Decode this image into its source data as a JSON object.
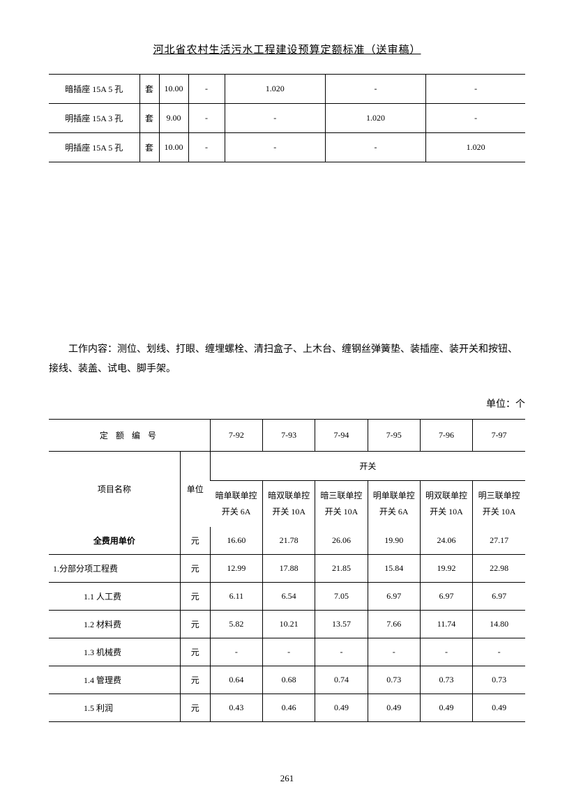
{
  "pageTitle": "河北省农村生活污水工程建设预算定额标准（送审稿）",
  "pageNumber": "261",
  "table1": {
    "rows": [
      {
        "name": "暗插座 15A 5 孔",
        "unit": "套",
        "v1": "10.00",
        "v2": "-",
        "v3": "1.020",
        "v4": "-",
        "v5": "-"
      },
      {
        "name": "明插座 15A 3 孔",
        "unit": "套",
        "v1": "9.00",
        "v2": "-",
        "v3": "-",
        "v4": "1.020",
        "v5": "-"
      },
      {
        "name": "明插座 15A 5 孔",
        "unit": "套",
        "v1": "10.00",
        "v2": "-",
        "v3": "-",
        "v4": "-",
        "v5": "1.020"
      }
    ]
  },
  "workContent": "工作内容：测位、划线、打眼、缠埋螺栓、清扫盒子、上木台、缠钢丝弹簧垫、装插座、装开关和按钮、接线、装盖、试电、脚手架。",
  "unitLabel": "单位：个",
  "table2": {
    "codeHeader": "定 额 编 号",
    "codes": [
      "7-92",
      "7-93",
      "7-94",
      "7-95",
      "7-96",
      "7-97"
    ],
    "nameHeader": "项目名称",
    "unitHeader": "单位",
    "groupHeader": "开关",
    "subHeaders": [
      "暗单联单控\n开关 6A",
      "暗双联单控\n开关 10A",
      "暗三联单控\n开关 10A",
      "明单联单控\n开关 6A",
      "明双联单控\n开关 10A",
      "明三联单控\n开关 10A"
    ],
    "rows": [
      {
        "name": "全费用单价",
        "unit": "元",
        "vals": [
          "16.60",
          "21.78",
          "26.06",
          "19.90",
          "24.06",
          "27.17"
        ],
        "bold": true
      },
      {
        "name": "1.分部分项工程费",
        "unit": "元",
        "vals": [
          "12.99",
          "17.88",
          "21.85",
          "15.84",
          "19.92",
          "22.98"
        ],
        "indent": false
      },
      {
        "name": "1.1 人工费",
        "unit": "元",
        "vals": [
          "6.11",
          "6.54",
          "7.05",
          "6.97",
          "6.97",
          "6.97"
        ],
        "indent": true
      },
      {
        "name": "1.2 材料费",
        "unit": "元",
        "vals": [
          "5.82",
          "10.21",
          "13.57",
          "7.66",
          "11.74",
          "14.80"
        ],
        "indent": true
      },
      {
        "name": "1.3 机械费",
        "unit": "元",
        "vals": [
          "-",
          "-",
          "-",
          "-",
          "-",
          "-"
        ],
        "indent": true
      },
      {
        "name": "1.4 管理费",
        "unit": "元",
        "vals": [
          "0.64",
          "0.68",
          "0.74",
          "0.73",
          "0.73",
          "0.73"
        ],
        "indent": true
      },
      {
        "name": "1.5 利润",
        "unit": "元",
        "vals": [
          "0.43",
          "0.46",
          "0.49",
          "0.49",
          "0.49",
          "0.49"
        ],
        "indent": true
      }
    ]
  }
}
